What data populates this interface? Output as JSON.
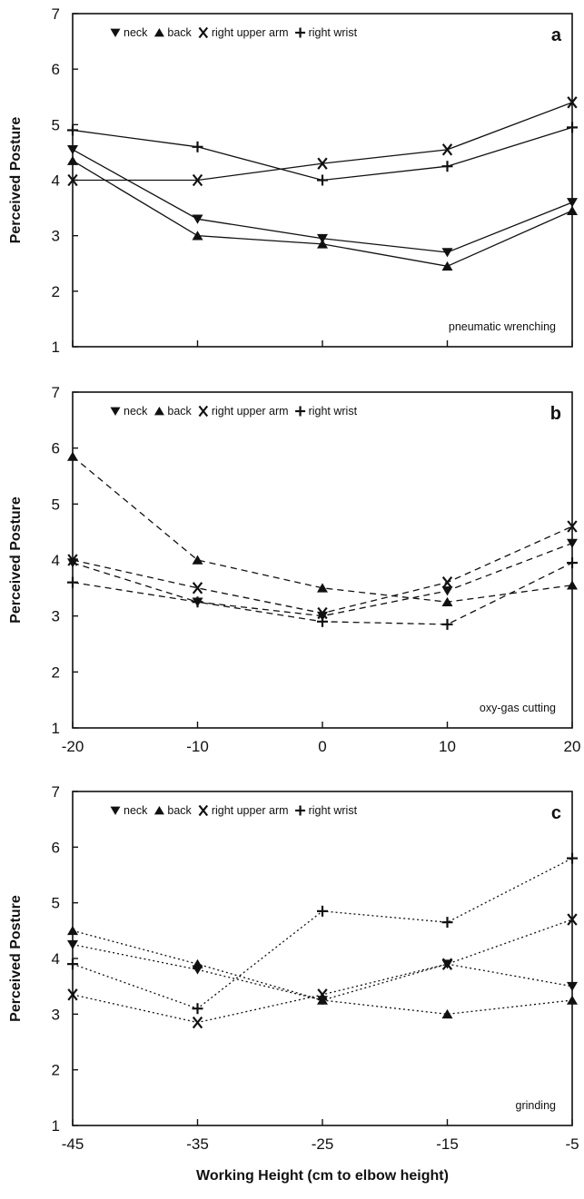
{
  "chart_data": [
    {
      "type": "line",
      "panel_label": "a",
      "annotation": "pneumatic wrenching",
      "ylabel": "Perceived Posture",
      "xlabel": "",
      "ylim": [
        1,
        7
      ],
      "y_ticks": [
        "1",
        "2",
        "3",
        "4",
        "5",
        "6",
        "7"
      ],
      "x": [
        -20,
        -10,
        0,
        10,
        20
      ],
      "x_tick_labels": [],
      "line_style": "solid",
      "legend": {
        "placement": "top-left",
        "entries": [
          "neck",
          "back",
          "right upper arm",
          "right wrist"
        ]
      },
      "series": [
        {
          "name": "neck",
          "marker": "triangle-down",
          "values": [
            4.55,
            3.3,
            2.95,
            2.7,
            3.6
          ]
        },
        {
          "name": "back",
          "marker": "triangle-up",
          "values": [
            4.35,
            3.0,
            2.85,
            2.45,
            3.45
          ]
        },
        {
          "name": "right upper arm",
          "marker": "x",
          "values": [
            4.0,
            4.0,
            4.3,
            4.55,
            5.4
          ]
        },
        {
          "name": "right wrist",
          "marker": "plus",
          "values": [
            4.9,
            4.6,
            4.0,
            4.25,
            4.95
          ]
        }
      ]
    },
    {
      "type": "line",
      "panel_label": "b",
      "annotation": "oxy-gas cutting",
      "ylabel": "Perceived Posture",
      "xlabel": "",
      "ylim": [
        1,
        7
      ],
      "y_ticks": [
        "1",
        "2",
        "3",
        "4",
        "5",
        "6",
        "7"
      ],
      "x": [
        -20,
        -10,
        0,
        10,
        20
      ],
      "x_tick_labels": [
        "-20",
        "-10",
        "0",
        "10",
        "20"
      ],
      "line_style": "dashed",
      "legend": {
        "placement": "top-left",
        "entries": [
          "neck",
          "back",
          "right upper arm",
          "right wrist"
        ]
      },
      "series": [
        {
          "name": "neck",
          "marker": "triangle-down",
          "values": [
            3.95,
            3.25,
            3.0,
            3.45,
            4.3
          ]
        },
        {
          "name": "back",
          "marker": "triangle-up",
          "values": [
            5.85,
            4.0,
            3.5,
            3.25,
            3.55
          ]
        },
        {
          "name": "right upper arm",
          "marker": "x",
          "values": [
            4.0,
            3.5,
            3.05,
            3.6,
            4.6
          ]
        },
        {
          "name": "right wrist",
          "marker": "plus",
          "values": [
            3.6,
            3.25,
            2.9,
            2.85,
            3.95
          ]
        }
      ]
    },
    {
      "type": "line",
      "panel_label": "c",
      "annotation": "grinding",
      "ylabel": "Perceived Posture",
      "xlabel": "Working Height (cm to elbow height)",
      "ylim": [
        1,
        7
      ],
      "y_ticks": [
        "1",
        "2",
        "3",
        "4",
        "5",
        "6",
        "7"
      ],
      "x": [
        -45,
        -35,
        -25,
        -15,
        -5
      ],
      "x_tick_labels": [
        "-45",
        "-35",
        "-25",
        "-15",
        "-5"
      ],
      "line_style": "dotted",
      "legend": {
        "placement": "top-left",
        "entries": [
          "neck",
          "back",
          "right upper arm",
          "right wrist"
        ]
      },
      "series": [
        {
          "name": "neck",
          "marker": "triangle-down",
          "values": [
            4.25,
            3.8,
            3.25,
            3.9,
            3.5
          ]
        },
        {
          "name": "back",
          "marker": "triangle-up",
          "values": [
            4.5,
            3.9,
            3.25,
            3.0,
            3.25
          ]
        },
        {
          "name": "right upper arm",
          "marker": "x",
          "values": [
            3.35,
            2.85,
            3.35,
            3.9,
            4.7
          ]
        },
        {
          "name": "right wrist",
          "marker": "plus",
          "values": [
            3.9,
            3.1,
            4.85,
            4.65,
            5.8
          ]
        }
      ]
    }
  ]
}
